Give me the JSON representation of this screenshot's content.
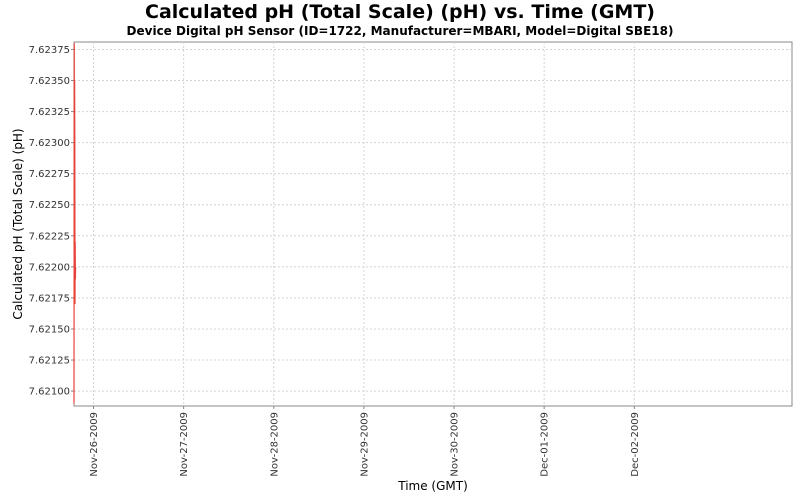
{
  "chart_data": {
    "type": "line",
    "title": "Calculated pH (Total Scale) (pH) vs. Time (GMT)",
    "subtitle": "Device Digital pH Sensor (ID=1722, Manufacturer=MBARI, Model=Digital SBE18)",
    "xlabel": "Time (GMT)",
    "ylabel": "Calculated pH (Total Scale) (pH)",
    "x_ticks": [
      "Nov-26-2009",
      "Nov-27-2009",
      "Nov-28-2009",
      "Nov-29-2009",
      "Nov-30-2009",
      "Dec-01-2009",
      "Dec-02-2009"
    ],
    "y_ticks": [
      "7.62100",
      "7.62125",
      "7.62150",
      "7.62175",
      "7.62200",
      "7.62225",
      "7.62250",
      "7.62275",
      "7.62300",
      "7.62325",
      "7.62350",
      "7.62375"
    ],
    "ylim": [
      7.62088,
      7.62381
    ],
    "xlim": [
      "2009-11-25 18:48",
      "2009-12-03 18:00"
    ],
    "grid": true,
    "series_color": "#e8413a",
    "series": [
      {
        "x": [
          "2009-11-25 18:48",
          "2009-11-25 18:52",
          "2009-11-25 18:55",
          "2009-11-25 18:58",
          "2009-11-25 19:01",
          "2009-11-25 19:04",
          "2009-11-25 19:07",
          "2009-11-25 19:10",
          "2009-11-25 19:14"
        ],
        "values": [
          7.6209,
          7.6238,
          7.6228,
          7.6235,
          7.623,
          7.6217,
          7.6222,
          7.6219,
          7.622
        ]
      }
    ]
  }
}
